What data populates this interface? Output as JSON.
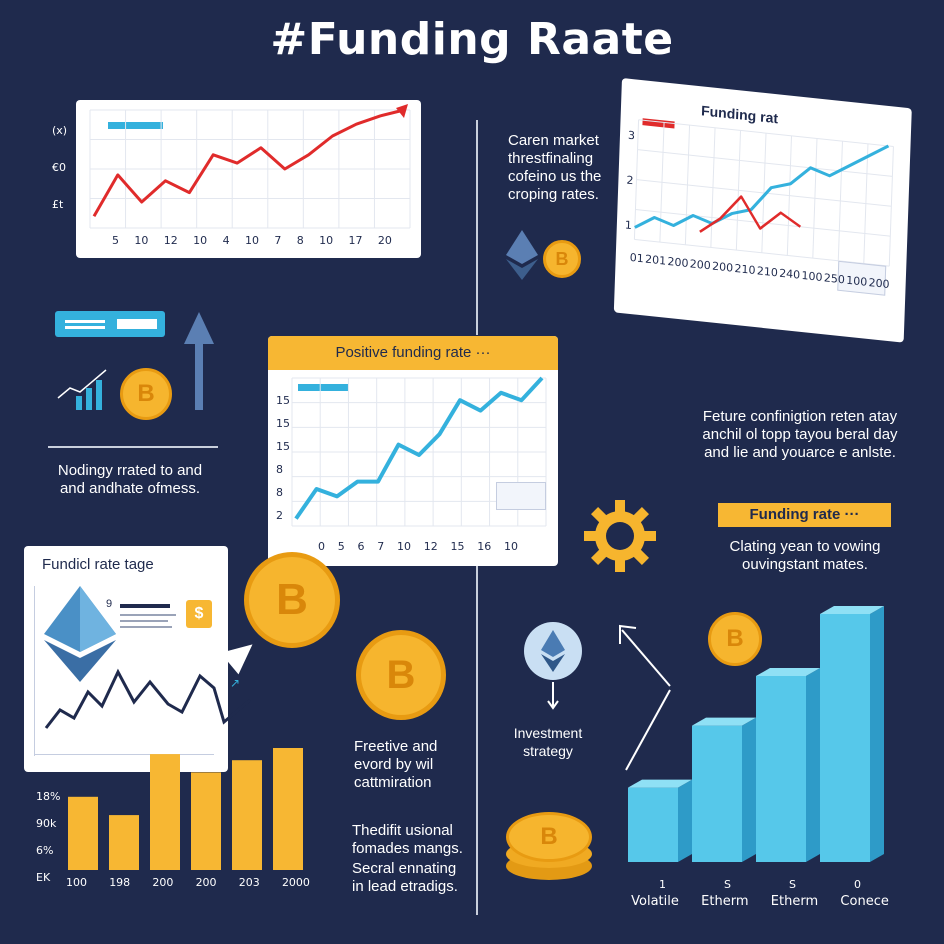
{
  "title": "#Funding Raate",
  "colors": {
    "background": "#1f2a4d",
    "accent_red": "#e02b2b",
    "accent_blue": "#34b1dd",
    "accent_yellow": "#f7b733",
    "bitcoin": "#f6b52e"
  },
  "top_left_chart": {
    "y_ticks": [
      "(x)",
      "€0",
      "£t"
    ],
    "x_ticks": [
      "5",
      "10",
      "12",
      "10",
      "4",
      "10",
      "7",
      "8",
      "10",
      "17",
      "20"
    ]
  },
  "top_right_text": [
    "Caren market",
    "threstfinaling",
    "cofeino us the",
    "croping rates."
  ],
  "top_right_chart": {
    "title": "Funding rat",
    "y_ticks": [
      "3",
      "2",
      "1"
    ],
    "x_ticks": [
      "01",
      "201",
      "200",
      "200",
      "200",
      "210",
      "210",
      "240",
      "100",
      "250",
      "100",
      "200"
    ]
  },
  "left_mid_text": [
    "Nodingy rrated to and",
    "and andhate ofmess."
  ],
  "center_chart": {
    "banner": "Positive funding rate ···",
    "y_ticks": [
      "15",
      "15",
      "15",
      "8",
      "8",
      "2"
    ],
    "x_ticks": [
      "0",
      "5",
      "6",
      "7",
      "10",
      "12",
      "15",
      "16",
      "10"
    ]
  },
  "right_mid_text": [
    "Feture confinigtion reten atay",
    "anchil ol topp tayou beral day",
    "and lie and youarce e anlste."
  ],
  "funding_rate_banner": "Funding rate ···",
  "right_funding_text": [
    "Clating yean to vowing",
    "ouvingstant mates."
  ],
  "bottom_left_card": {
    "title": "Fundicl rate tage",
    "badge": "$",
    "number": "9"
  },
  "bottom_left_bars": {
    "y_ticks": [
      "18%",
      "90k",
      "6%",
      "EK"
    ],
    "x_ticks": [
      "100",
      "198",
      "200",
      "200",
      "203",
      "2000"
    ]
  },
  "center_bottom_text": {
    "p1": [
      "Freetive and",
      "evord by wil",
      "cattmiration"
    ],
    "p2": [
      "Thedifit usional",
      "fomades mangs."
    ],
    "p3": [
      "Secral ennating",
      "in lead etradigs."
    ]
  },
  "investment_strategy": [
    "Investment",
    "strategy"
  ],
  "bottom_right_chart": {
    "x_ticks": [
      "1",
      "S",
      "S",
      "0"
    ],
    "x_labels": [
      "Volatile",
      "Etherm",
      "Etherm",
      "Conece"
    ]
  },
  "coin_symbol": "B",
  "chart_data": [
    {
      "type": "line",
      "title": "",
      "series": [
        {
          "values": [
            0.1,
            0.45,
            0.22,
            0.4,
            0.3,
            0.62,
            0.55,
            0.68,
            0.5,
            0.62,
            0.78,
            0.88,
            0.95,
            1.0
          ]
        }
      ]
    },
    {
      "type": "line",
      "title": "Funding rat",
      "series": [
        {
          "values": [
            0.1,
            0.2,
            0.15,
            0.25,
            0.2,
            0.3,
            0.35,
            0.55,
            0.6,
            0.75,
            0.7,
            0.8,
            0.9,
            1.0
          ]
        },
        {
          "values": [
            0.12,
            0.25,
            0.45,
            0.2,
            0.35,
            0.25
          ]
        }
      ]
    },
    {
      "type": "line",
      "title": "Positive funding rate",
      "series": [
        {
          "values": [
            0.05,
            0.25,
            0.2,
            0.3,
            0.3,
            0.55,
            0.48,
            0.62,
            0.85,
            0.78,
            0.9,
            0.85,
            1.0
          ]
        }
      ]
    },
    {
      "type": "bar",
      "categories": [
        "100",
        "198",
        "200",
        "200",
        "203",
        "2000"
      ],
      "values": [
        0.6,
        0.45,
        0.95,
        0.8,
        0.9,
        1.0
      ]
    },
    {
      "type": "bar",
      "categories": [
        "Volatile",
        "Etherm",
        "Etherm",
        "Conece"
      ],
      "values": [
        0.3,
        0.55,
        0.75,
        1.0
      ]
    }
  ]
}
